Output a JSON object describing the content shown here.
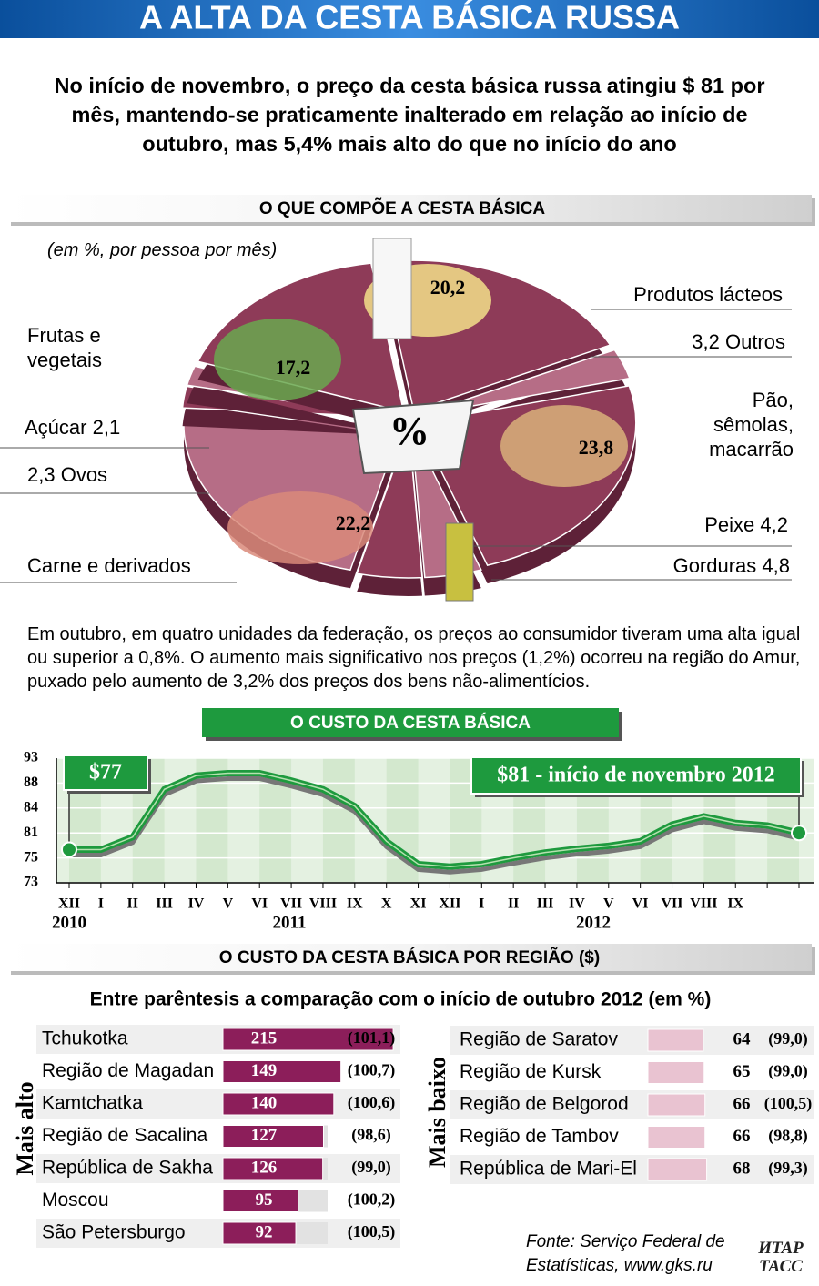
{
  "title": "A ALTA DA CESTA BÁSICA RUSSA",
  "subtitle": "No início de novembro, o preço da cesta básica russa atingiu $ 81 por mês, mantendo-se praticamente inalterado em relação ao início de outubro, mas 5,4% mais alto do que no início do ano",
  "paragraph": "Em outubro, em quatro unidades da federação, os preços ao consumidor tiveram uma alta igual ou superior a 0,8%. O aumento mais significativo nos preços (1,2%) ocorreu na região do Amur, puxado pelo aumento de 3,2% dos preços dos bens não-alimentícios.",
  "region_title": "O CUSTO DA CESTA BÁSICA POR REGIÃO ($)",
  "region_subtitle": "Entre parêntesis a comparação com o início de outubro 2012 (em %)",
  "source": "Fonte: Serviço Federal de Estatísticas, www.gks.ru",
  "logo": "ИТАР ТАСС",
  "chart_data": [
    {
      "type": "pie",
      "title": "O QUE COMPÕE A CESTA BÁSICA",
      "subtitle": "(em %, por pessoa por mês)",
      "center_label": "%",
      "categories": [
        "Produtos lácteos",
        "Outros",
        "Pão, sêmolas, macarrão",
        "Peixe",
        "Gorduras",
        "Carne e derivados",
        "Ovos",
        "Açúcar",
        "Frutas e vegetais"
      ],
      "values": [
        20.2,
        3.2,
        23.8,
        4.2,
        4.8,
        22.2,
        2.3,
        2.1,
        17.2
      ],
      "value_labels": [
        "20,2",
        "3,2",
        "23,8",
        "4,2",
        "4,8",
        "22,2",
        "2,3",
        "2,1",
        "17,2"
      ],
      "colors": [
        "#8e3b58",
        "#b66d86",
        "#8e3b58",
        "#b66d86",
        "#8e3b58",
        "#b66d86",
        "#8e3b58",
        "#b66d86",
        "#8e3b58"
      ]
    },
    {
      "type": "line",
      "title": "O CUSTO DA CESTA BÁSICA",
      "categories": [
        "XII",
        "I",
        "II",
        "III",
        "IV",
        "V",
        "VI",
        "VII",
        "VIII",
        "IX",
        "X",
        "XI",
        "XII",
        "I",
        "II",
        "III",
        "IV",
        "V",
        "VI",
        "VII",
        "VIII",
        "IX",
        null,
        null
      ],
      "years": [
        "2010",
        "2011",
        "2012"
      ],
      "values": [
        77,
        77,
        80,
        87,
        89.5,
        90,
        90,
        88.5,
        87,
        84.3,
        79,
        74.5,
        74.3,
        74.5,
        75,
        76.3,
        77.2,
        77.9,
        79,
        82,
        83,
        82.2,
        81.9,
        81
      ],
      "color": "#1e9a3e",
      "ylim": [
        73,
        93
      ],
      "yticks": [
        73,
        75,
        81,
        84,
        88,
        93
      ],
      "annotations": [
        "$77",
        "$81 - início de novembro 2012"
      ]
    },
    {
      "type": "bar",
      "title": "Mais alto",
      "color": "#8c1e5a",
      "categories": [
        "Tchukotka",
        "Região de Magadan",
        "Kamtchatka",
        "Região de Sacalina",
        "República de Sakha",
        "Moscou",
        "São Petersburgo"
      ],
      "values": [
        215,
        149,
        140,
        127,
        126,
        95,
        92
      ],
      "comparison_labels": [
        "(101,1)",
        "(100,7)",
        "(100,6)",
        "(98,6)",
        "(99,0)",
        "(100,2)",
        "(100,5)"
      ]
    },
    {
      "type": "bar",
      "title": "Mais baixo",
      "color": "#e9c3d1",
      "categories": [
        "Região de Saratov",
        "Região de Kursk",
        "Região de Belgorod",
        "Região de Tambov",
        "República de Mari-El"
      ],
      "values": [
        64,
        65,
        66,
        66,
        68
      ],
      "comparison_labels": [
        "(99,0)",
        "(99,0)",
        "(100,5)",
        "(98,8)",
        "(99,3)"
      ]
    }
  ]
}
